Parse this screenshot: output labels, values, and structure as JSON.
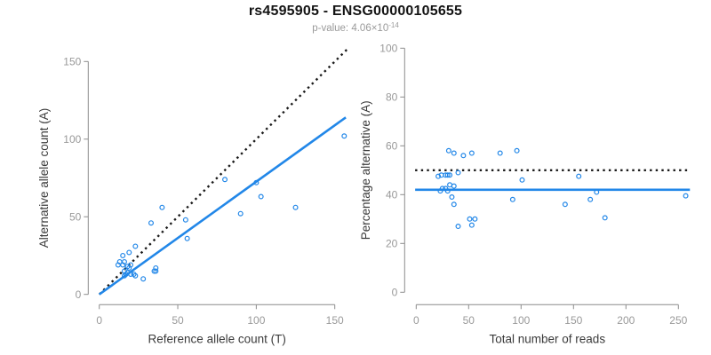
{
  "header": {
    "title": "rs4595905 - ENSG00000105655",
    "subtitle_prefix": "p-value: 4.06×10",
    "subtitle_exponent": "-14"
  },
  "colors": {
    "accent_blue": "#2287E8",
    "line_black": "#1a1a1a",
    "axis_gray": "#8c8c8c",
    "tick_label_gray": "#999999",
    "axis_title_dark": "#3a3a3a",
    "title_black": "#141414",
    "background": "#ffffff"
  },
  "chart_data": [
    {
      "id": "ref-vs-alt-counts",
      "type": "scatter",
      "title": "",
      "xlabel": "Reference allele count (T)",
      "ylabel": "Alternative allele count (A)",
      "xlim": [
        0,
        150
      ],
      "ylim": [
        0,
        150
      ],
      "xticks": [
        0,
        50,
        100,
        150
      ],
      "yticks": [
        0,
        50,
        100,
        150
      ],
      "grid": false,
      "legend": "none",
      "points": [
        [
          156,
          102
        ],
        [
          80,
          74
        ],
        [
          100,
          72
        ],
        [
          103,
          63
        ],
        [
          125,
          56
        ],
        [
          90,
          52
        ],
        [
          40,
          56
        ],
        [
          55,
          48
        ],
        [
          33,
          46
        ],
        [
          56,
          36
        ],
        [
          23,
          31
        ],
        [
          19,
          27
        ],
        [
          15,
          25
        ],
        [
          13,
          21
        ],
        [
          16,
          21
        ],
        [
          12,
          19
        ],
        [
          15,
          19
        ],
        [
          18,
          18
        ],
        [
          19,
          17
        ],
        [
          20,
          19
        ],
        [
          16,
          15
        ],
        [
          17,
          13
        ],
        [
          18,
          14
        ],
        [
          20,
          13
        ],
        [
          22,
          13
        ],
        [
          23,
          12
        ],
        [
          16,
          12
        ],
        [
          28,
          10
        ],
        [
          35,
          15
        ],
        [
          36,
          17
        ],
        [
          36,
          15
        ]
      ],
      "lines": [
        {
          "name": "identity-line",
          "style": "dotted",
          "color": "#1a1a1a",
          "width": 2.4,
          "from": [
            0,
            0
          ],
          "to": [
            158,
            158
          ]
        },
        {
          "name": "fit-line",
          "style": "solid",
          "color": "#2287E8",
          "width": 2.6,
          "from": [
            0,
            0
          ],
          "to": [
            157,
            114
          ]
        }
      ]
    },
    {
      "id": "reads-vs-percentage",
      "type": "scatter",
      "title": "",
      "xlabel": "Total number of reads",
      "ylabel": "Percentage alternative (A)",
      "xlim": [
        0,
        250
      ],
      "ylim": [
        0,
        100
      ],
      "xticks": [
        0,
        50,
        100,
        150,
        200,
        250
      ],
      "yticks": [
        0,
        20,
        40,
        60,
        80,
        100
      ],
      "grid": false,
      "legend": "none",
      "points": [
        [
          31,
          58
        ],
        [
          36,
          57
        ],
        [
          45,
          56
        ],
        [
          53,
          57
        ],
        [
          80,
          57
        ],
        [
          96,
          58
        ],
        [
          21,
          47.5
        ],
        [
          24,
          48
        ],
        [
          28,
          48
        ],
        [
          30,
          48
        ],
        [
          32,
          48
        ],
        [
          40,
          49
        ],
        [
          101,
          46
        ],
        [
          155,
          47.5
        ],
        [
          23,
          41.5
        ],
        [
          25,
          42.5
        ],
        [
          28,
          42.5
        ],
        [
          30,
          41.5
        ],
        [
          32,
          44
        ],
        [
          36,
          43.5
        ],
        [
          34,
          39
        ],
        [
          36,
          36
        ],
        [
          92,
          38
        ],
        [
          142,
          36
        ],
        [
          166,
          38
        ],
        [
          172,
          41
        ],
        [
          180,
          30.5
        ],
        [
          257,
          39.5
        ],
        [
          51,
          30
        ],
        [
          56,
          30
        ],
        [
          40,
          27
        ],
        [
          53,
          27.5
        ]
      ],
      "lines": [
        {
          "name": "expected-50-percent-line",
          "style": "dotted",
          "color": "#1a1a1a",
          "width": 2.4,
          "from": [
            -1,
            50
          ],
          "to": [
            261,
            50
          ]
        },
        {
          "name": "mean-percentage-line",
          "style": "solid",
          "color": "#2287E8",
          "width": 2.7,
          "from": [
            -1,
            42
          ],
          "to": [
            261,
            42
          ]
        }
      ]
    }
  ]
}
